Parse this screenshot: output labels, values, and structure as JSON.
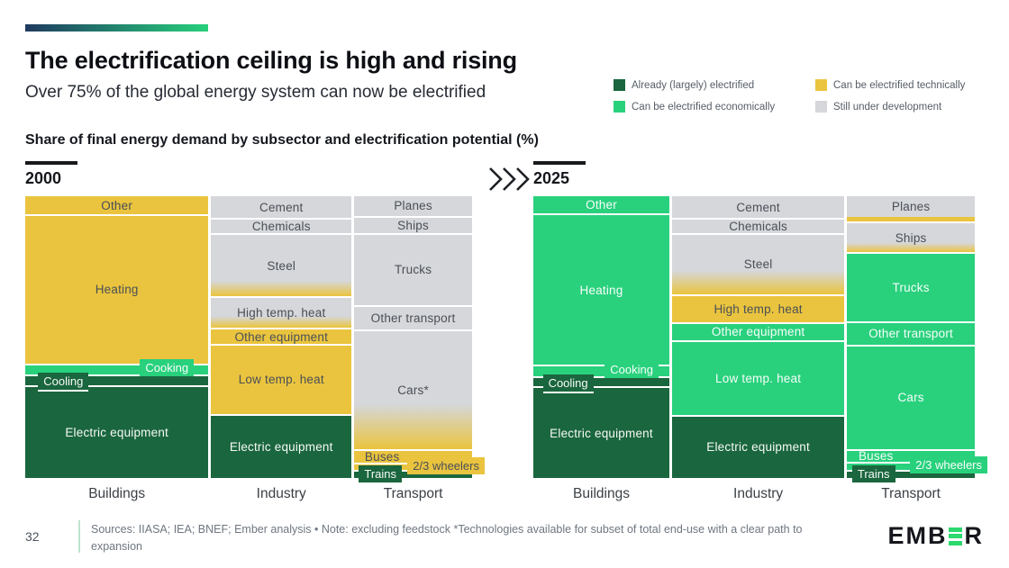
{
  "slide": {
    "title": "The electrification ceiling is high and rising",
    "subtitle": "Over 75% of the global energy system can now be electrified",
    "chart_heading": "Share of final energy demand by subsector and electrification potential (%)",
    "page_number": "32",
    "footnote": "Sources: IIASA; IEA; BNEF; Ember analysis • Note: excluding feedstock *Technologies available for subset of total end-use with a clear path to expansion",
    "logo_text_left": "EMB",
    "logo_text_right": "R"
  },
  "palette": {
    "electrified": "#1a663e",
    "economic": "#29d17d",
    "technical": "#eac43e",
    "development": "#d5d7da",
    "accent_gradient_start": "#1f3a60",
    "accent_gradient_end": "#27d07c",
    "logo_green": "#2bd96d"
  },
  "legend": {
    "items": [
      {
        "label": "Already (largely) electrified",
        "category": "electrified"
      },
      {
        "label": "Can be electrified technically",
        "category": "technical"
      },
      {
        "label": "Can be electrified economically",
        "category": "economic"
      },
      {
        "label": "Still under development",
        "category": "development"
      }
    ]
  },
  "chart_data": [
    {
      "type": "marimekko",
      "year": "2000",
      "unit": "% of final energy demand",
      "columns": [
        {
          "label": "Buildings",
          "width_pct": 41.5,
          "segments": [
            {
              "label": "Other",
              "category": "technical",
              "share": 6.4
            },
            {
              "label": "Heating",
              "category": "technical",
              "share": 53.0
            },
            {
              "label": "Cooking",
              "category": "economic",
              "share": 3.9,
              "label_style": "tag-right"
            },
            {
              "label": "Cooling",
              "category": "electrified",
              "share": 3.7,
              "label_style": "tag-left"
            },
            {
              "label": "Electric equipment",
              "category": "electrified",
              "share": 33.0
            }
          ]
        },
        {
          "label": "Industry",
          "width_pct": 31.8,
          "segments": [
            {
              "label": "Cement",
              "category": "development",
              "share": 7.7
            },
            {
              "label": "Chemicals",
              "category": "development",
              "share": 5.4
            },
            {
              "label": "Steel",
              "category": "development",
              "share": 22.4,
              "gradient_to": "technical",
              "gradient_from": 75
            },
            {
              "label": "High temp. heat",
              "category": "development",
              "share": 11.2,
              "gradient_to": "technical",
              "gradient_from": 62
            },
            {
              "label": "Other equipment",
              "category": "technical",
              "share": 5.8
            },
            {
              "label": "Low temp. heat",
              "category": "technical",
              "share": 24.7
            },
            {
              "label": "Electric equipment",
              "category": "electrified",
              "share": 22.8
            }
          ]
        },
        {
          "label": "Transport",
          "width_pct": 26.7,
          "segments": [
            {
              "label": "Planes",
              "category": "development",
              "share": 7.0
            },
            {
              "label": "Ships",
              "category": "development",
              "share": 6.0
            },
            {
              "label": "Trucks",
              "category": "development",
              "share": 25.6
            },
            {
              "label": "Other transport",
              "category": "development",
              "share": 8.7
            },
            {
              "label": "Cars*",
              "category": "development",
              "share": 42.6,
              "gradient_to": "technical",
              "gradient_from": 62
            },
            {
              "label": "Buses",
              "category": "technical",
              "share": 4.8,
              "label_style": "band"
            },
            {
              "label": "2/3 wheelers",
              "category": "technical",
              "share": 2.6,
              "label_style": "tag-out-right"
            },
            {
              "label": "Trains",
              "category": "electrified",
              "share": 2.7,
              "label_style": "tag-out-left"
            }
          ]
        }
      ]
    },
    {
      "type": "marimekko",
      "year": "2025",
      "unit": "% of final energy demand",
      "columns": [
        {
          "label": "Buildings",
          "width_pct": 31.2,
          "segments": [
            {
              "label": "Other",
              "category": "economic",
              "share": 6.1
            },
            {
              "label": "Heating",
              "category": "economic",
              "share": 53.7
            },
            {
              "label": "Cooking",
              "category": "economic",
              "share": 4.2,
              "label_style": "tag-right"
            },
            {
              "label": "Cooling",
              "category": "electrified",
              "share": 3.5,
              "label_style": "tag-left"
            },
            {
              "label": "Electric equipment",
              "category": "electrified",
              "share": 32.5
            }
          ]
        },
        {
          "label": "Industry",
          "width_pct": 39.5,
          "segments": [
            {
              "label": "Cement",
              "category": "development",
              "share": 7.7
            },
            {
              "label": "Chemicals",
              "category": "development",
              "share": 5.5
            },
            {
              "label": "Steel",
              "category": "development",
              "share": 21.5,
              "gradient_to": "technical",
              "gradient_from": 60
            },
            {
              "label": "High temp. heat",
              "category": "technical",
              "share": 10.0
            },
            {
              "label": "Other equipment",
              "category": "economic",
              "share": 6.4
            },
            {
              "label": "Low temp. heat",
              "category": "economic",
              "share": 26.4
            },
            {
              "label": "Electric equipment",
              "category": "electrified",
              "share": 22.5
            }
          ]
        },
        {
          "label": "Transport",
          "width_pct": 29.3,
          "segments": [
            {
              "label": "Planes",
              "category": "development",
              "share": 7.4
            },
            {
              "label": "",
              "category": "technical",
              "share": 1.6,
              "no_sep": true
            },
            {
              "label": "Ships",
              "category": "development",
              "share": 10.9,
              "gradient_to": "technical",
              "gradient_from": 68
            },
            {
              "label": "Trucks",
              "category": "economic",
              "share": 24.4
            },
            {
              "label": "Other transport",
              "category": "economic",
              "share": 8.4
            },
            {
              "label": "Cars",
              "category": "economic",
              "share": 37.0
            },
            {
              "label": "Buses",
              "category": "economic",
              "share": 4.5,
              "label_style": "band"
            },
            {
              "label": "2/3 wheelers",
              "category": "economic",
              "share": 2.9,
              "label_style": "tag-out-right"
            },
            {
              "label": "Trains",
              "category": "electrified",
              "share": 2.9,
              "label_style": "tag-out-left"
            }
          ]
        }
      ]
    }
  ]
}
